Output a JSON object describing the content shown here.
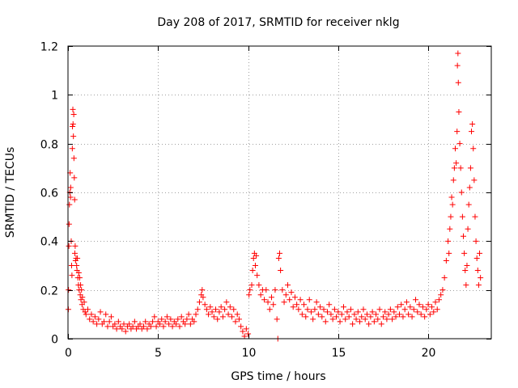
{
  "chart_data": {
    "type": "scatter",
    "title": "Day 208 of 2017, SRMTID for receiver nklg",
    "xlabel": "GPS time / hours",
    "ylabel": "SRMTID / TECUs",
    "xlim": [
      0,
      23.5
    ],
    "ylim": [
      0,
      1.2
    ],
    "x_ticks": [
      0,
      5,
      10,
      15,
      20
    ],
    "x_tick_labels": [
      "0",
      "5",
      "10",
      "15",
      "20"
    ],
    "y_ticks": [
      0,
      0.2,
      0.4,
      0.6,
      0.8,
      1.0,
      1.2
    ],
    "y_tick_labels": [
      "0",
      "0.2",
      "0.4",
      "0.6",
      "0.8",
      "1",
      "1.2"
    ],
    "grid": true,
    "marker": "+",
    "series_color": "#ff0000",
    "series": [
      {
        "name": "SRMTID",
        "points": [
          [
            0.02,
            0.12
          ],
          [
            0.03,
            0.2
          ],
          [
            0.05,
            0.38
          ],
          [
            0.06,
            0.47
          ],
          [
            0.08,
            0.55
          ],
          [
            0.1,
            0.6
          ],
          [
            0.12,
            0.68
          ],
          [
            0.14,
            0.58
          ],
          [
            0.15,
            0.62
          ],
          [
            0.18,
            0.4
          ],
          [
            0.2,
            0.3
          ],
          [
            0.22,
            0.26
          ],
          [
            0.24,
            0.78
          ],
          [
            0.25,
            0.87
          ],
          [
            0.27,
            0.94
          ],
          [
            0.28,
            0.88
          ],
          [
            0.3,
            0.83
          ],
          [
            0.32,
            0.92
          ],
          [
            0.33,
            0.74
          ],
          [
            0.35,
            0.66
          ],
          [
            0.37,
            0.57
          ],
          [
            0.38,
            0.35
          ],
          [
            0.4,
            0.38
          ],
          [
            0.42,
            0.32
          ],
          [
            0.45,
            0.33
          ],
          [
            0.48,
            0.3
          ],
          [
            0.5,
            0.28
          ],
          [
            0.52,
            0.33
          ],
          [
            0.55,
            0.25
          ],
          [
            0.58,
            0.22
          ],
          [
            0.6,
            0.27
          ],
          [
            0.62,
            0.2
          ],
          [
            0.65,
            0.25
          ],
          [
            0.68,
            0.18
          ],
          [
            0.7,
            0.22
          ],
          [
            0.72,
            0.16
          ],
          [
            0.75,
            0.2
          ],
          [
            0.78,
            0.14
          ],
          [
            0.8,
            0.17
          ],
          [
            0.85,
            0.12
          ],
          [
            0.9,
            0.15
          ],
          [
            0.95,
            0.11
          ],
          [
            1.0,
            0.1
          ],
          [
            1.1,
            0.12
          ],
          [
            1.2,
            0.08
          ],
          [
            1.3,
            0.1
          ],
          [
            1.4,
            0.07
          ],
          [
            1.5,
            0.09
          ],
          [
            1.6,
            0.06
          ],
          [
            1.7,
            0.08
          ],
          [
            1.8,
            0.11
          ],
          [
            1.9,
            0.06
          ],
          [
            2.0,
            0.07
          ],
          [
            2.1,
            0.1
          ],
          [
            2.2,
            0.05
          ],
          [
            2.3,
            0.07
          ],
          [
            2.4,
            0.09
          ],
          [
            2.5,
            0.05
          ],
          [
            2.6,
            0.06
          ],
          [
            2.7,
            0.04
          ],
          [
            2.8,
            0.07
          ],
          [
            2.9,
            0.05
          ],
          [
            3.0,
            0.04
          ],
          [
            3.1,
            0.06
          ],
          [
            3.2,
            0.03
          ],
          [
            3.3,
            0.05
          ],
          [
            3.4,
            0.06
          ],
          [
            3.5,
            0.04
          ],
          [
            3.6,
            0.05
          ],
          [
            3.7,
            0.07
          ],
          [
            3.8,
            0.04
          ],
          [
            3.9,
            0.05
          ],
          [
            4.0,
            0.06
          ],
          [
            4.1,
            0.04
          ],
          [
            4.2,
            0.05
          ],
          [
            4.3,
            0.07
          ],
          [
            4.4,
            0.04
          ],
          [
            4.5,
            0.06
          ],
          [
            4.6,
            0.05
          ],
          [
            4.7,
            0.07
          ],
          [
            4.8,
            0.09
          ],
          [
            4.9,
            0.05
          ],
          [
            5.0,
            0.07
          ],
          [
            5.1,
            0.06
          ],
          [
            5.2,
            0.08
          ],
          [
            5.3,
            0.05
          ],
          [
            5.4,
            0.07
          ],
          [
            5.5,
            0.09
          ],
          [
            5.6,
            0.06
          ],
          [
            5.7,
            0.08
          ],
          [
            5.8,
            0.05
          ],
          [
            5.9,
            0.07
          ],
          [
            6.0,
            0.06
          ],
          [
            6.1,
            0.08
          ],
          [
            6.2,
            0.05
          ],
          [
            6.3,
            0.09
          ],
          [
            6.4,
            0.07
          ],
          [
            6.5,
            0.06
          ],
          [
            6.6,
            0.08
          ],
          [
            6.7,
            0.1
          ],
          [
            6.8,
            0.06
          ],
          [
            6.9,
            0.08
          ],
          [
            7.0,
            0.07
          ],
          [
            7.1,
            0.1
          ],
          [
            7.2,
            0.12
          ],
          [
            7.3,
            0.15
          ],
          [
            7.4,
            0.18
          ],
          [
            7.45,
            0.2
          ],
          [
            7.5,
            0.17
          ],
          [
            7.6,
            0.14
          ],
          [
            7.7,
            0.12
          ],
          [
            7.8,
            0.1
          ],
          [
            7.9,
            0.13
          ],
          [
            8.0,
            0.11
          ],
          [
            8.1,
            0.09
          ],
          [
            8.2,
            0.12
          ],
          [
            8.3,
            0.08
          ],
          [
            8.4,
            0.11
          ],
          [
            8.5,
            0.13
          ],
          [
            8.6,
            0.09
          ],
          [
            8.7,
            0.12
          ],
          [
            8.8,
            0.15
          ],
          [
            8.9,
            0.1
          ],
          [
            9.0,
            0.13
          ],
          [
            9.1,
            0.09
          ],
          [
            9.2,
            0.12
          ],
          [
            9.3,
            0.07
          ],
          [
            9.4,
            0.1
          ],
          [
            9.5,
            0.08
          ],
          [
            9.6,
            0.05
          ],
          [
            9.7,
            0.03
          ],
          [
            9.8,
            0.01
          ],
          [
            9.9,
            0.04
          ],
          [
            10.0,
            0.02
          ],
          [
            10.05,
            0.18
          ],
          [
            10.1,
            0.2
          ],
          [
            10.2,
            0.22
          ],
          [
            10.25,
            0.28
          ],
          [
            10.3,
            0.33
          ],
          [
            10.35,
            0.35
          ],
          [
            10.4,
            0.3
          ],
          [
            10.45,
            0.34
          ],
          [
            10.5,
            0.26
          ],
          [
            10.6,
            0.22
          ],
          [
            10.7,
            0.18
          ],
          [
            10.8,
            0.2
          ],
          [
            10.9,
            0.16
          ],
          [
            11.0,
            0.2
          ],
          [
            11.1,
            0.15
          ],
          [
            11.2,
            0.12
          ],
          [
            11.3,
            0.17
          ],
          [
            11.4,
            0.14
          ],
          [
            11.5,
            0.2
          ],
          [
            11.6,
            0.08
          ],
          [
            11.65,
            0.0
          ],
          [
            11.7,
            0.33
          ],
          [
            11.75,
            0.35
          ],
          [
            11.8,
            0.28
          ],
          [
            11.9,
            0.2
          ],
          [
            12.0,
            0.15
          ],
          [
            12.1,
            0.18
          ],
          [
            12.2,
            0.22
          ],
          [
            12.3,
            0.16
          ],
          [
            12.4,
            0.19
          ],
          [
            12.5,
            0.13
          ],
          [
            12.6,
            0.17
          ],
          [
            12.7,
            0.14
          ],
          [
            12.8,
            0.12
          ],
          [
            12.9,
            0.16
          ],
          [
            13.0,
            0.1
          ],
          [
            13.1,
            0.14
          ],
          [
            13.2,
            0.09
          ],
          [
            13.3,
            0.12
          ],
          [
            13.4,
            0.16
          ],
          [
            13.5,
            0.11
          ],
          [
            13.6,
            0.08
          ],
          [
            13.7,
            0.12
          ],
          [
            13.8,
            0.15
          ],
          [
            13.9,
            0.1
          ],
          [
            14.0,
            0.13
          ],
          [
            14.1,
            0.09
          ],
          [
            14.2,
            0.12
          ],
          [
            14.3,
            0.07
          ],
          [
            14.4,
            0.11
          ],
          [
            14.5,
            0.14
          ],
          [
            14.6,
            0.1
          ],
          [
            14.7,
            0.08
          ],
          [
            14.8,
            0.12
          ],
          [
            14.9,
            0.09
          ],
          [
            15.0,
            0.11
          ],
          [
            15.1,
            0.07
          ],
          [
            15.2,
            0.1
          ],
          [
            15.3,
            0.13
          ],
          [
            15.4,
            0.08
          ],
          [
            15.5,
            0.11
          ],
          [
            15.6,
            0.09
          ],
          [
            15.7,
            0.12
          ],
          [
            15.8,
            0.06
          ],
          [
            15.9,
            0.1
          ],
          [
            16.0,
            0.08
          ],
          [
            16.1,
            0.11
          ],
          [
            16.2,
            0.07
          ],
          [
            16.3,
            0.09
          ],
          [
            16.4,
            0.12
          ],
          [
            16.5,
            0.08
          ],
          [
            16.6,
            0.1
          ],
          [
            16.7,
            0.06
          ],
          [
            16.8,
            0.09
          ],
          [
            16.9,
            0.11
          ],
          [
            17.0,
            0.07
          ],
          [
            17.1,
            0.1
          ],
          [
            17.2,
            0.08
          ],
          [
            17.3,
            0.12
          ],
          [
            17.4,
            0.06
          ],
          [
            17.5,
            0.09
          ],
          [
            17.6,
            0.11
          ],
          [
            17.7,
            0.08
          ],
          [
            17.8,
            0.1
          ],
          [
            17.9,
            0.12
          ],
          [
            18.0,
            0.08
          ],
          [
            18.1,
            0.11
          ],
          [
            18.2,
            0.09
          ],
          [
            18.3,
            0.13
          ],
          [
            18.4,
            0.1
          ],
          [
            18.5,
            0.14
          ],
          [
            18.6,
            0.09
          ],
          [
            18.7,
            0.12
          ],
          [
            18.8,
            0.15
          ],
          [
            18.9,
            0.1
          ],
          [
            19.0,
            0.13
          ],
          [
            19.1,
            0.09
          ],
          [
            19.2,
            0.12
          ],
          [
            19.3,
            0.16
          ],
          [
            19.4,
            0.11
          ],
          [
            19.5,
            0.14
          ],
          [
            19.6,
            0.1
          ],
          [
            19.7,
            0.13
          ],
          [
            19.8,
            0.09
          ],
          [
            19.9,
            0.12
          ],
          [
            20.0,
            0.14
          ],
          [
            20.1,
            0.1
          ],
          [
            20.2,
            0.13
          ],
          [
            20.3,
            0.11
          ],
          [
            20.4,
            0.15
          ],
          [
            20.5,
            0.12
          ],
          [
            20.6,
            0.16
          ],
          [
            20.7,
            0.18
          ],
          [
            20.8,
            0.2
          ],
          [
            20.9,
            0.25
          ],
          [
            21.0,
            0.32
          ],
          [
            21.1,
            0.4
          ],
          [
            21.15,
            0.35
          ],
          [
            21.2,
            0.45
          ],
          [
            21.25,
            0.5
          ],
          [
            21.3,
            0.58
          ],
          [
            21.35,
            0.55
          ],
          [
            21.4,
            0.65
          ],
          [
            21.45,
            0.7
          ],
          [
            21.5,
            0.78
          ],
          [
            21.55,
            0.72
          ],
          [
            21.6,
            0.85
          ],
          [
            21.62,
            1.12
          ],
          [
            21.65,
            1.17
          ],
          [
            21.67,
            1.05
          ],
          [
            21.7,
            0.93
          ],
          [
            21.75,
            0.8
          ],
          [
            21.8,
            0.7
          ],
          [
            21.85,
            0.6
          ],
          [
            21.9,
            0.5
          ],
          [
            21.95,
            0.42
          ],
          [
            22.0,
            0.35
          ],
          [
            22.05,
            0.28
          ],
          [
            22.1,
            0.22
          ],
          [
            22.15,
            0.3
          ],
          [
            22.2,
            0.45
          ],
          [
            22.25,
            0.55
          ],
          [
            22.3,
            0.62
          ],
          [
            22.35,
            0.7
          ],
          [
            22.4,
            0.85
          ],
          [
            22.45,
            0.88
          ],
          [
            22.5,
            0.78
          ],
          [
            22.55,
            0.65
          ],
          [
            22.6,
            0.5
          ],
          [
            22.65,
            0.4
          ],
          [
            22.7,
            0.33
          ],
          [
            22.75,
            0.28
          ],
          [
            22.8,
            0.22
          ],
          [
            22.85,
            0.35
          ],
          [
            22.9,
            0.25
          ]
        ]
      }
    ]
  }
}
